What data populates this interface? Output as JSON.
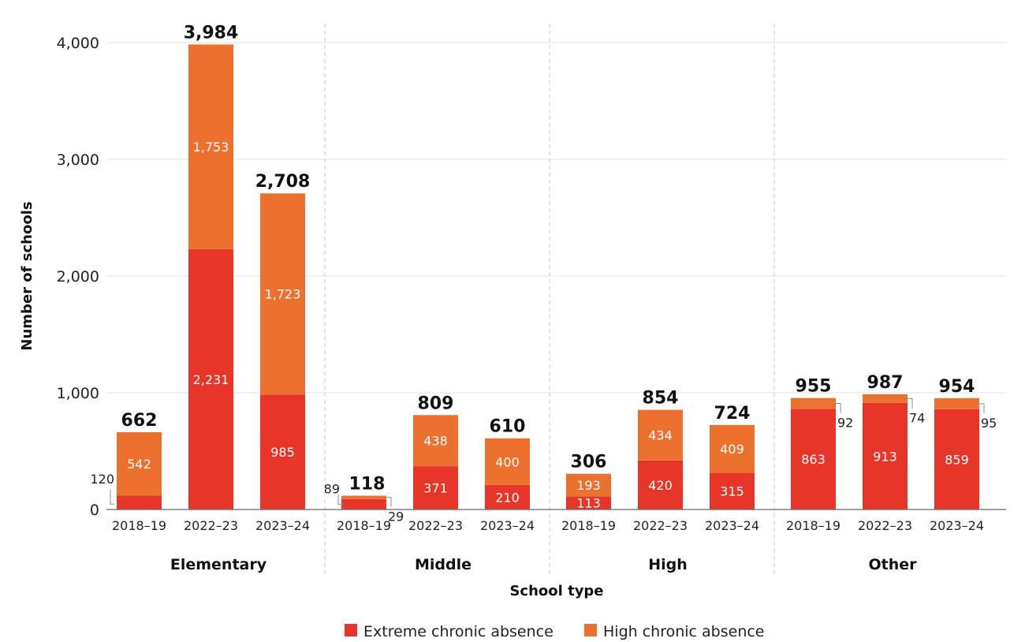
{
  "chart_data": {
    "type": "bar",
    "stacked": true,
    "xlabel": "School type",
    "ylabel": "Number of schools",
    "ylim": [
      0,
      4000
    ],
    "yticks": [
      0,
      1000,
      2000,
      3000,
      4000
    ],
    "ytick_labels": [
      "0",
      "1,000",
      "2,000",
      "3,000",
      "4,000"
    ],
    "grid": true,
    "legend_position": "bottom",
    "groups": [
      {
        "name": "Elementary",
        "categories": [
          "2018–19",
          "2022–23",
          "2023–24"
        ]
      },
      {
        "name": "Middle",
        "categories": [
          "2018–19",
          "2022–23",
          "2023–24"
        ]
      },
      {
        "name": "High",
        "categories": [
          "2018–19",
          "2022–23",
          "2023–24"
        ]
      },
      {
        "name": "Other",
        "categories": [
          "2018–19",
          "2022–23",
          "2023–24"
        ]
      }
    ],
    "series": [
      {
        "name": "Extreme chronic absence",
        "color": "#e8352a",
        "values": [
          120,
          2231,
          985,
          89,
          371,
          210,
          113,
          420,
          315,
          863,
          913,
          859
        ],
        "labels": [
          "120",
          "2,231",
          "985",
          "89",
          "371",
          "210",
          "113",
          "420",
          "315",
          "863",
          "913",
          "859"
        ]
      },
      {
        "name": "High chronic absence",
        "color": "#ec712f",
        "values": [
          542,
          1753,
          1723,
          29,
          438,
          400,
          193,
          434,
          409,
          92,
          74,
          95
        ],
        "labels": [
          "542",
          "1,753",
          "1,723",
          "29",
          "438",
          "400",
          "193",
          "434",
          "409",
          "92",
          "74",
          "95"
        ]
      }
    ],
    "totals": [
      662,
      3984,
      2708,
      118,
      809,
      610,
      306,
      854,
      724,
      955,
      987,
      954
    ],
    "total_labels": [
      "662",
      "3,984",
      "2,708",
      "118",
      "809",
      "610",
      "306",
      "854",
      "724",
      "955",
      "987",
      "954"
    ],
    "outside_labels": [
      {
        "bar": 0,
        "series": 0
      },
      {
        "bar": 3,
        "series": 0
      },
      {
        "bar": 3,
        "series": 1
      },
      {
        "bar": 9,
        "series": 1
      },
      {
        "bar": 10,
        "series": 1
      },
      {
        "bar": 11,
        "series": 1
      }
    ]
  }
}
